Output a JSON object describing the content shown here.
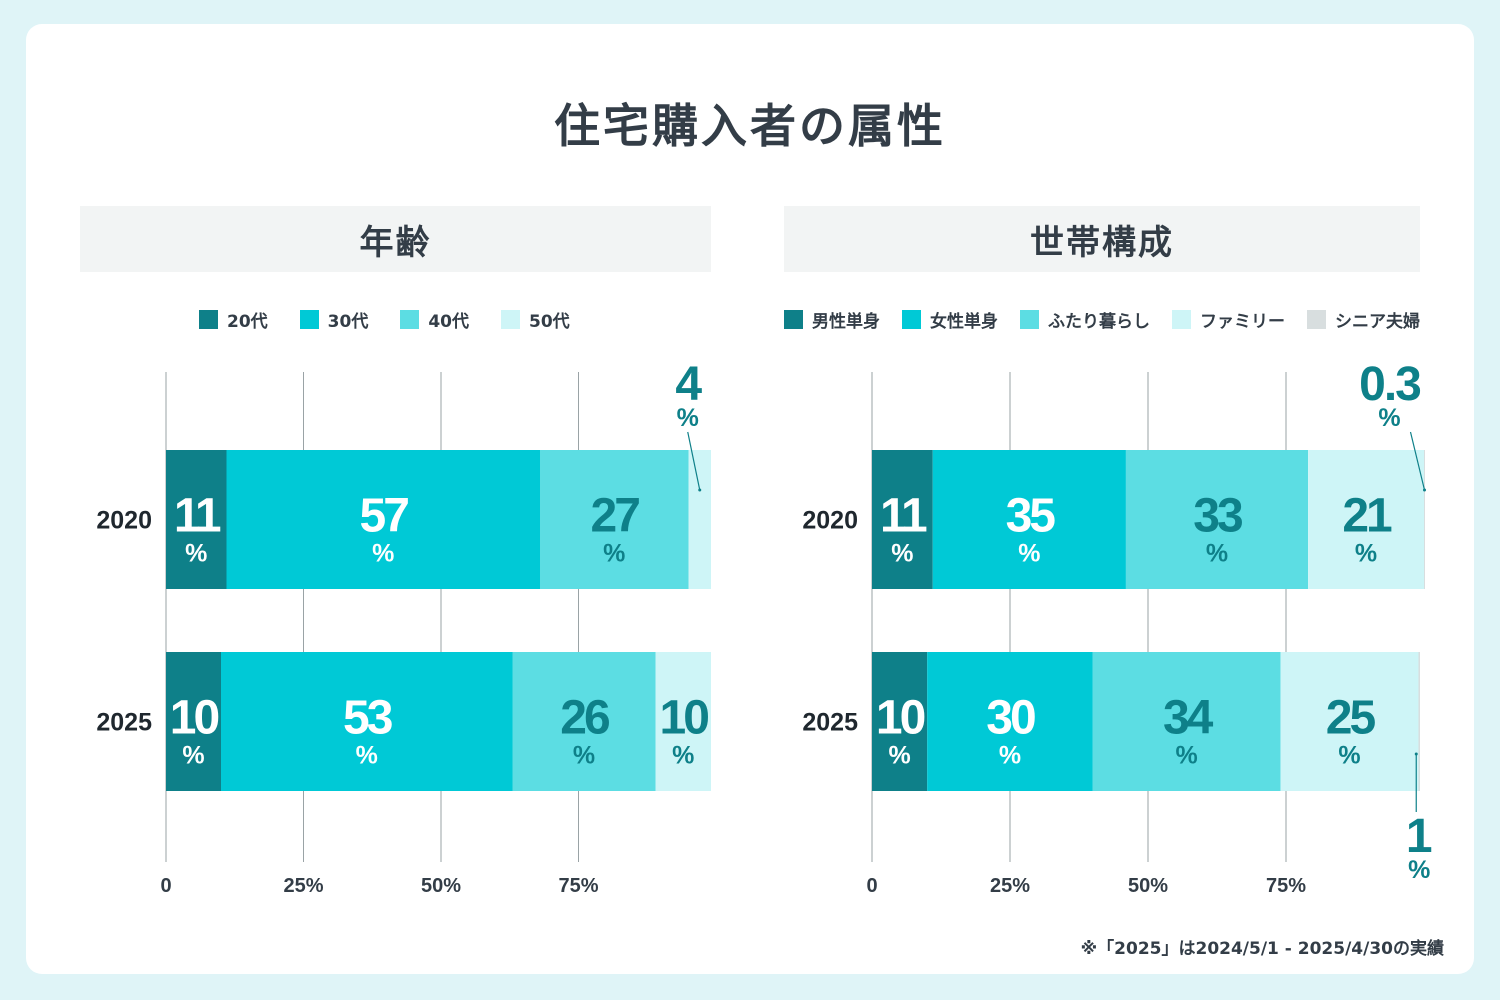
{
  "title": "住宅購入者の属性",
  "footnote": "※「2025」は2024/5/1 - 2025/4/30の実績",
  "colors": {
    "dark_teal": "#0e8089",
    "cyan": "#00c9d6",
    "light_cyan": "#5cdde3",
    "pale_cyan": "#cef5f7",
    "gray": "#d8dedf",
    "label_dark": "#0e8089",
    "label_white": "#ffffff"
  },
  "chart_data": [
    {
      "type": "bar",
      "orientation": "horizontal",
      "stacked": true,
      "title": "年齢",
      "categories": [
        "2020",
        "2025"
      ],
      "xticks": [
        "0",
        "25%",
        "50%",
        "75%"
      ],
      "xlim": [
        0,
        100
      ],
      "unit": "%",
      "legend_position": "top",
      "series": [
        {
          "name": "20代",
          "values": [
            11,
            10
          ]
        },
        {
          "name": "30代",
          "values": [
            57,
            53
          ]
        },
        {
          "name": "40代",
          "values": [
            27,
            26
          ]
        },
        {
          "name": "50代",
          "values": [
            4,
            10
          ]
        }
      ]
    },
    {
      "type": "bar",
      "orientation": "horizontal",
      "stacked": true,
      "title": "世帯構成",
      "categories": [
        "2020",
        "2025"
      ],
      "xticks": [
        "0",
        "25%",
        "50%",
        "75%"
      ],
      "xlim": [
        0,
        100
      ],
      "unit": "%",
      "legend_position": "top",
      "series": [
        {
          "name": "男性単身",
          "values": [
            11,
            10
          ]
        },
        {
          "name": "女性単身",
          "values": [
            35,
            30
          ]
        },
        {
          "name": "ふたり暮らし",
          "values": [
            33,
            34
          ]
        },
        {
          "name": "ファミリー",
          "values": [
            21,
            25
          ]
        },
        {
          "name": "シニア夫婦",
          "values": [
            0.3,
            1
          ]
        }
      ]
    }
  ]
}
